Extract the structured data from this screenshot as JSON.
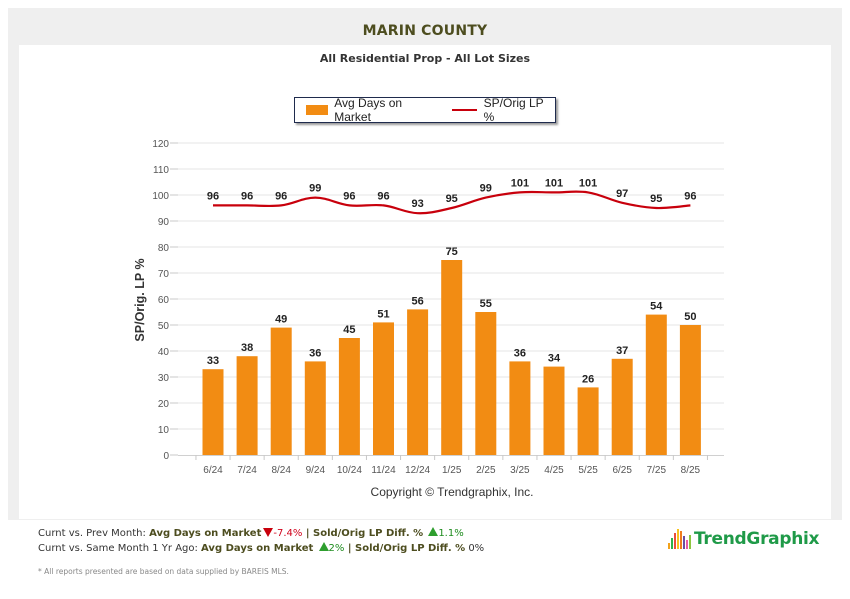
{
  "header": {
    "title": "MARIN COUNTY",
    "subtitle": "All Residential Prop - All Lot Sizes"
  },
  "legend": {
    "bar_label": "Avg Days on Market",
    "line_label": "SP/Orig LP %"
  },
  "copyright": "Copyright © Trendgraphix, Inc.",
  "footer": {
    "line1": {
      "prefix": "Curnt vs. Prev Month: ",
      "dom_label": "Avg Days on Market",
      "dom_direction": "down",
      "dom_value": "-7.4%",
      "sep": " | ",
      "lp_label": "Sold/Orig LP Diff. %",
      "lp_direction": "up",
      "lp_value": "1.1%"
    },
    "line2": {
      "prefix": "Curnt vs. Same Month 1 Yr Ago: ",
      "dom_label": "Avg Days on Market",
      "dom_direction": "up",
      "dom_value": "2%",
      "sep": " | ",
      "lp_label": "Sold/Orig LP Diff. %",
      "lp_value": " 0%"
    },
    "disclaimer": "* All reports presented are based on data supplied by BAREIS MLS."
  },
  "logo": {
    "text": "TrendGraphix",
    "bar_colors": [
      "#f2a21b",
      "#2db34a",
      "#e94e3c",
      "#f7c21d",
      "#f07c1e",
      "#6b4ea1",
      "#e95ba6",
      "#8dc63f"
    ]
  },
  "colors": {
    "bar": "#f28c13",
    "line": "#c8000c",
    "grid": "#e6e6e6",
    "title": "#4d4d1f",
    "logo": "#1f9a48"
  },
  "chart_data": {
    "type": "bar+line",
    "title": "MARIN COUNTY",
    "subtitle": "All Residential Prop - All Lot Sizes",
    "xlabel": "",
    "ylabel": "SP/Orig. LP %",
    "ylim": [
      0,
      120
    ],
    "yticks": [
      0,
      10,
      20,
      30,
      40,
      50,
      60,
      70,
      80,
      90,
      100,
      110,
      120
    ],
    "grid": true,
    "legend_position": "top-center",
    "categories": [
      "6/24",
      "7/24",
      "8/24",
      "9/24",
      "10/24",
      "11/24",
      "12/24",
      "1/25",
      "2/25",
      "3/25",
      "4/25",
      "5/25",
      "6/25",
      "7/25",
      "8/25"
    ],
    "series": [
      {
        "name": "Avg Days on Market",
        "type": "bar",
        "values": [
          33,
          38,
          49,
          36,
          45,
          51,
          56,
          75,
          55,
          36,
          34,
          26,
          37,
          54,
          50
        ]
      },
      {
        "name": "SP/Orig LP %",
        "type": "line",
        "values": [
          96,
          96,
          96,
          99,
          96,
          96,
          93,
          95,
          99,
          101,
          101,
          101,
          97,
          95,
          96
        ]
      }
    ]
  }
}
